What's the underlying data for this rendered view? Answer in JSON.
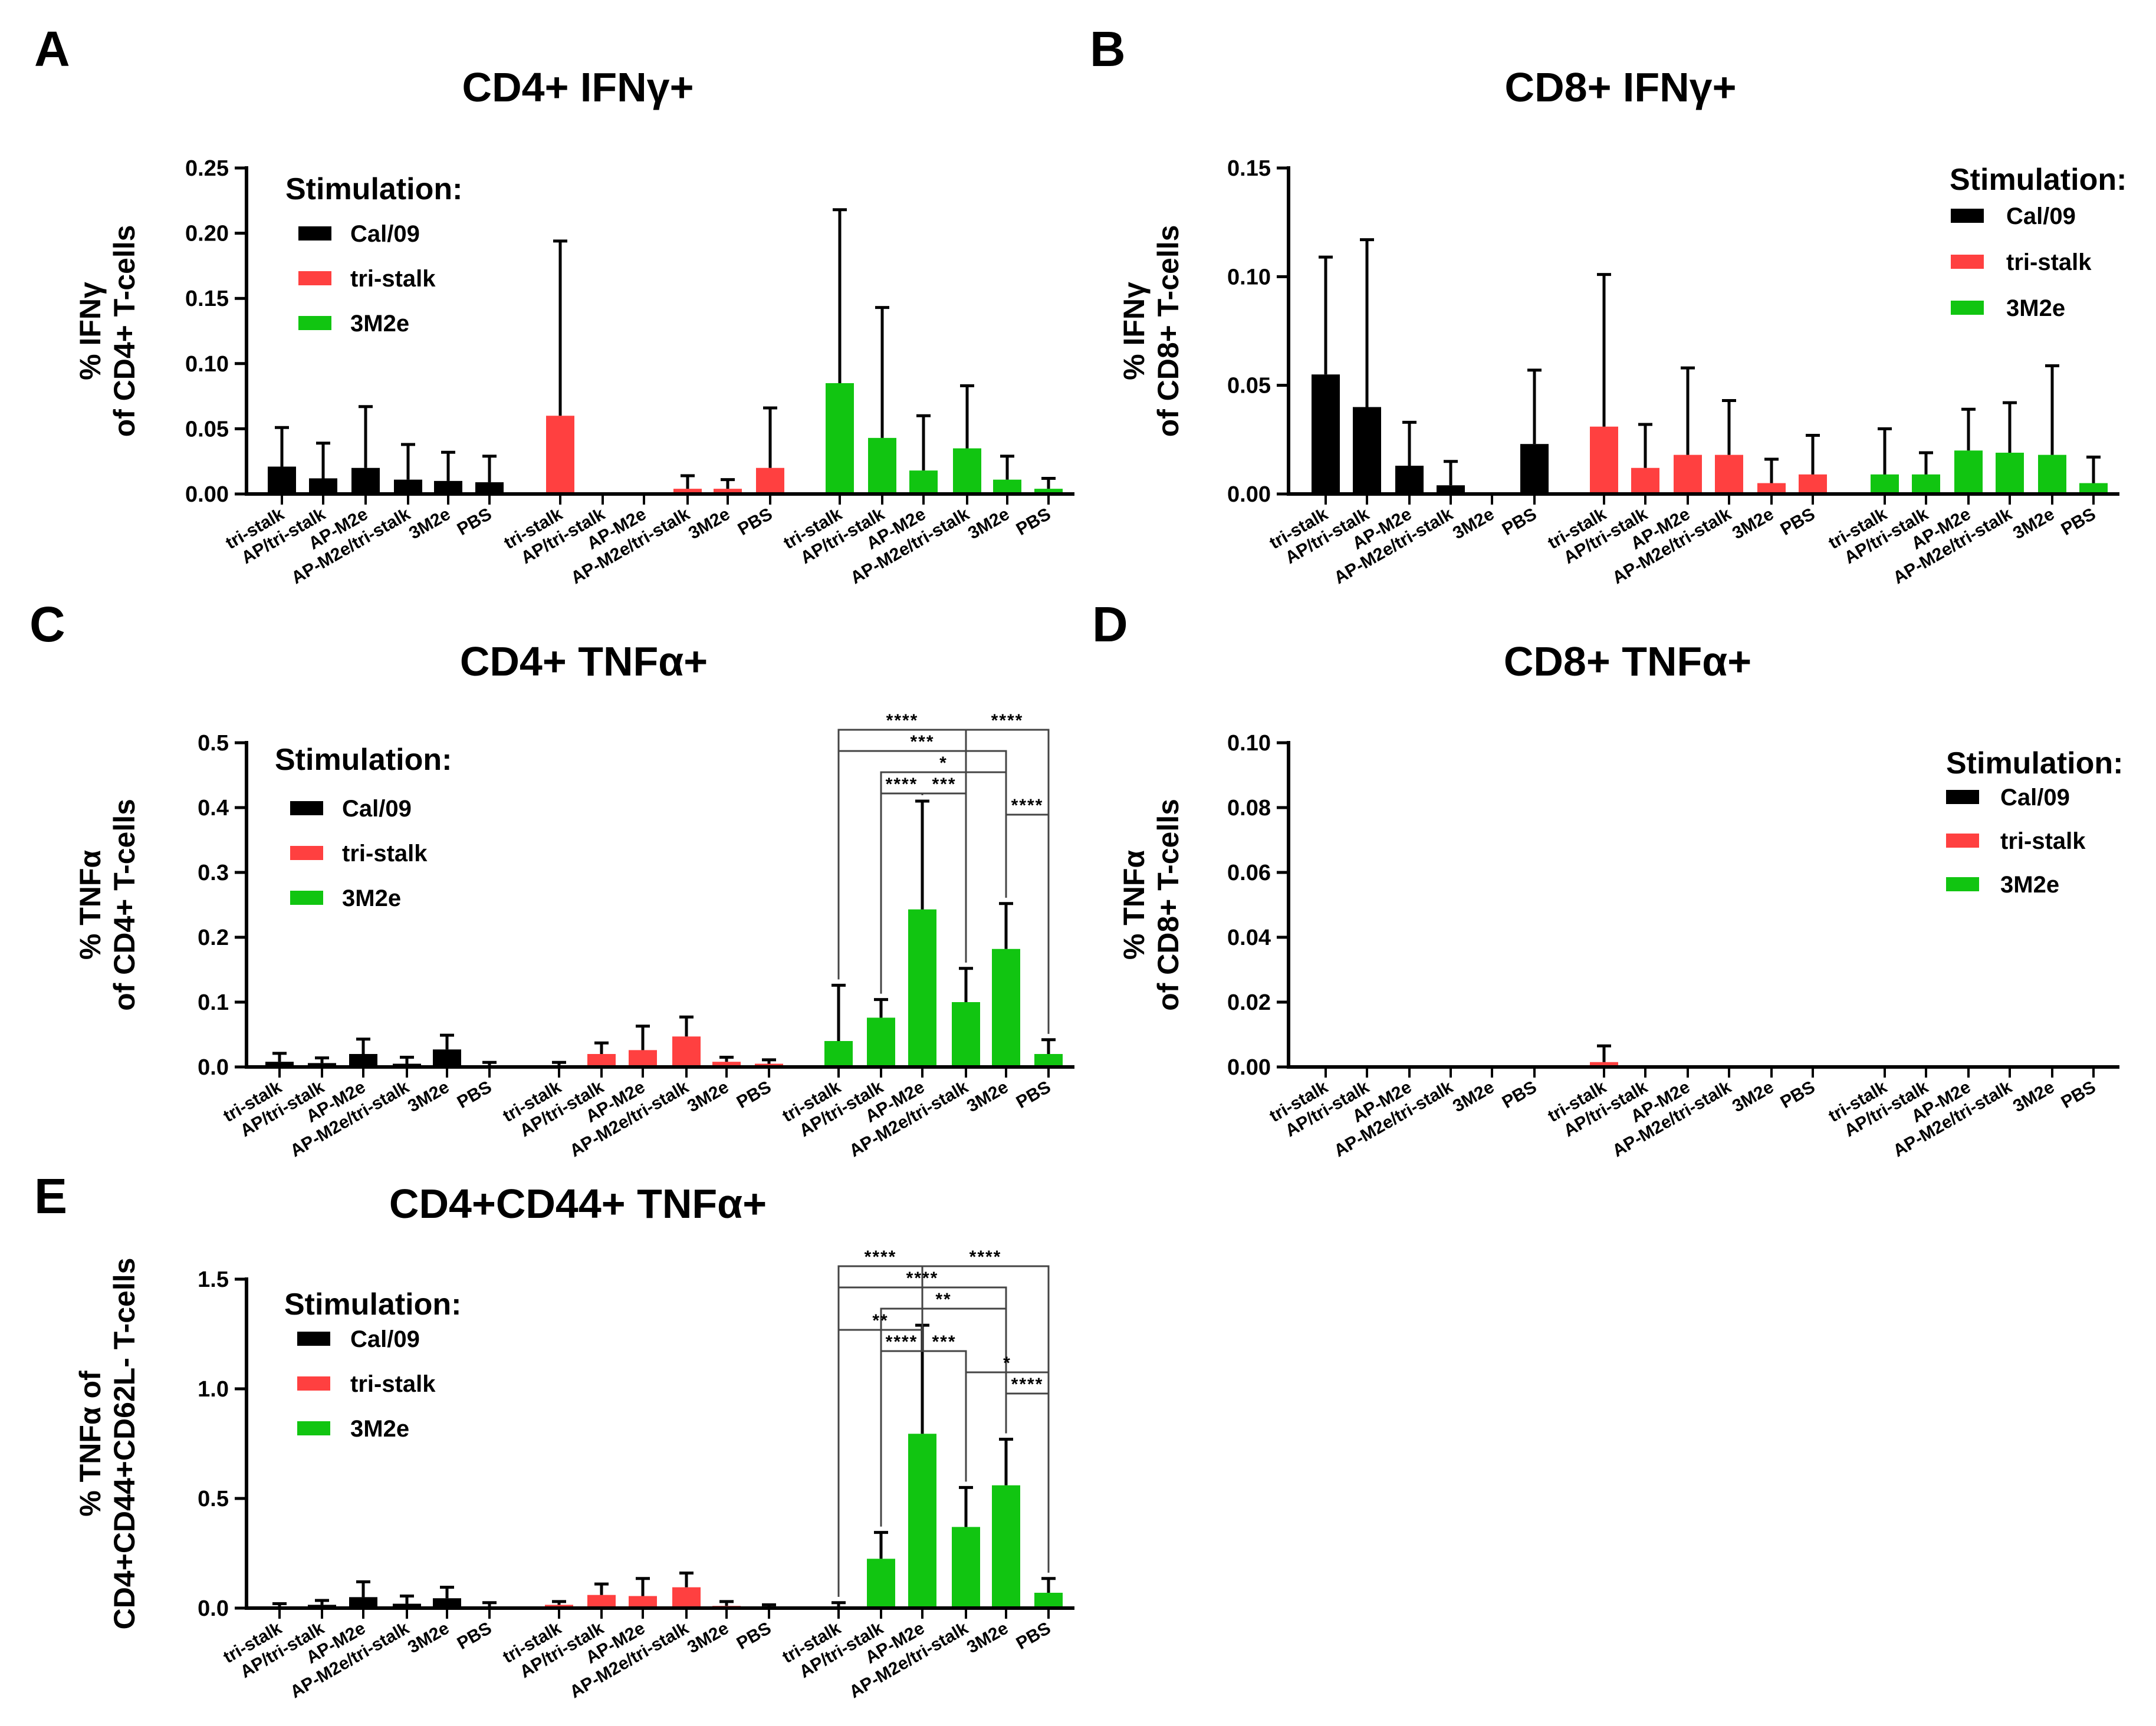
{
  "chart_data": [
    {
      "panel_id": "A",
      "type": "bar",
      "title": "CD4+ IFNγ+",
      "ylabel_lines": [
        "% IFNγ",
        "of CD4+ T-cells"
      ],
      "ylim": [
        0,
        0.25
      ],
      "yticks": [
        0.0,
        0.05,
        0.1,
        0.15,
        0.2,
        0.25
      ],
      "ytick_labels": [
        "0.00",
        "0.05",
        "0.10",
        "0.15",
        "0.20",
        "0.25"
      ],
      "categories": [
        "tri-stalk",
        "AP/tri-stalk",
        "AP-M2e",
        "AP-M2e/tri-stalk",
        "3M2e",
        "PBS"
      ],
      "legend": {
        "title": "Stimulation:",
        "position": "top-left",
        "entries": [
          "Cal/09",
          "tri-stalk",
          "3M2e"
        ]
      },
      "series": [
        {
          "name": "Cal/09",
          "color": "#000000",
          "values": [
            0.021,
            0.012,
            0.02,
            0.011,
            0.01,
            0.009
          ],
          "errors": [
            0.03,
            0.027,
            0.047,
            0.027,
            0.022,
            0.02
          ]
        },
        {
          "name": "tri-stalk",
          "color": "#ff4040",
          "values": [
            0.06,
            0,
            0,
            0.004,
            0.004,
            0.02
          ],
          "errors": [
            0.134,
            0,
            0,
            0.01,
            0.007,
            0.046
          ]
        },
        {
          "name": "3M2e",
          "color": "#11c511",
          "values": [
            0.085,
            0.043,
            0.018,
            0.035,
            0.011,
            0.004
          ],
          "errors": [
            0.133,
            0.1,
            0.042,
            0.048,
            0.018,
            0.008
          ]
        }
      ],
      "significance": []
    },
    {
      "panel_id": "B",
      "type": "bar",
      "title": "CD8+ IFNγ+",
      "ylabel_lines": [
        "% IFNγ",
        "of CD8+ T-cells"
      ],
      "ylim": [
        0,
        0.15
      ],
      "yticks": [
        0.0,
        0.05,
        0.1,
        0.15
      ],
      "ytick_labels": [
        "0.00",
        "0.05",
        "0.10",
        "0.15"
      ],
      "categories": [
        "tri-stalk",
        "AP/tri-stalk",
        "AP-M2e",
        "AP-M2e/tri-stalk",
        "3M2e",
        "PBS"
      ],
      "legend": {
        "title": "Stimulation:",
        "position": "top-right",
        "entries": [
          "Cal/09",
          "tri-stalk",
          "3M2e"
        ]
      },
      "series": [
        {
          "name": "Cal/09",
          "color": "#000000",
          "values": [
            0.055,
            0.04,
            0.013,
            0.004,
            0,
            0.023
          ],
          "errors": [
            0.054,
            0.077,
            0.02,
            0.011,
            0,
            0.034
          ]
        },
        {
          "name": "tri-stalk",
          "color": "#ff4040",
          "values": [
            0.031,
            0.012,
            0.018,
            0.018,
            0.005,
            0.009
          ],
          "errors": [
            0.07,
            0.02,
            0.04,
            0.025,
            0.011,
            0.018
          ]
        },
        {
          "name": "3M2e",
          "color": "#11c511",
          "values": [
            0.009,
            0.009,
            0.02,
            0.019,
            0.018,
            0.005
          ],
          "errors": [
            0.021,
            0.01,
            0.019,
            0.023,
            0.041,
            0.012
          ]
        }
      ],
      "significance": []
    },
    {
      "panel_id": "C",
      "type": "bar",
      "title": "CD4+ TNFα+",
      "ylabel_lines": [
        "% TNFα",
        "of CD4+ T-cells"
      ],
      "ylim": [
        0,
        0.5
      ],
      "yticks": [
        0.0,
        0.1,
        0.2,
        0.3,
        0.4,
        0.5
      ],
      "ytick_labels": [
        "0.0",
        "0.1",
        "0.2",
        "0.3",
        "0.4",
        "0.5"
      ],
      "categories": [
        "tri-stalk",
        "AP/tri-stalk",
        "AP-M2e",
        "AP-M2e/tri-stalk",
        "3M2e",
        "PBS"
      ],
      "legend": {
        "title": "Stimulation:",
        "position": "top-left",
        "entries": [
          "Cal/09",
          "tri-stalk",
          "3M2e"
        ]
      },
      "series": [
        {
          "name": "Cal/09",
          "color": "#000000",
          "values": [
            0.008,
            0.006,
            0.02,
            0.005,
            0.027,
            0.002
          ],
          "errors": [
            0.013,
            0.008,
            0.023,
            0.01,
            0.022,
            0.005
          ]
        },
        {
          "name": "tri-stalk",
          "color": "#ff4040",
          "values": [
            0.002,
            0.02,
            0.026,
            0.047,
            0.008,
            0.005
          ],
          "errors": [
            0.005,
            0.017,
            0.037,
            0.03,
            0.007,
            0.006
          ]
        },
        {
          "name": "3M2e",
          "color": "#11c511",
          "values": [
            0.04,
            0.076,
            0.243,
            0.1,
            0.182,
            0.02
          ],
          "errors": [
            0.086,
            0.028,
            0.167,
            0.052,
            0.07,
            0.022
          ]
        }
      ],
      "significance": [
        {
          "label": "****",
          "from": 0,
          "to": 3,
          "level": 1,
          "junction": true
        },
        {
          "label": "****",
          "from": 3,
          "to": 5,
          "level": 1,
          "junction": true
        },
        {
          "label": "***",
          "from": 0,
          "to": 4,
          "level": 2
        },
        {
          "label": "*",
          "from": 1,
          "to": 4,
          "level": 3
        },
        {
          "label": "****",
          "from": 1,
          "to": 2,
          "level": 4
        },
        {
          "label": "***",
          "from": 2,
          "to": 3,
          "level": 4
        },
        {
          "label": "****",
          "from": 4,
          "to": 5,
          "level": 5
        }
      ]
    },
    {
      "panel_id": "D",
      "type": "bar",
      "title": "CD8+ TNFα+",
      "ylabel_lines": [
        "% TNFα",
        "of CD8+ T-cells"
      ],
      "ylim": [
        0,
        0.1
      ],
      "yticks": [
        0.0,
        0.02,
        0.04,
        0.06,
        0.08,
        0.1
      ],
      "ytick_labels": [
        "0.00",
        "0.02",
        "0.04",
        "0.06",
        "0.08",
        "0.10"
      ],
      "categories": [
        "tri-stalk",
        "AP/tri-stalk",
        "AP-M2e",
        "AP-M2e/tri-stalk",
        "3M2e",
        "PBS"
      ],
      "legend": {
        "title": "Stimulation:",
        "position": "top-right",
        "entries": [
          "Cal/09",
          "tri-stalk",
          "3M2e"
        ]
      },
      "series": [
        {
          "name": "Cal/09",
          "color": "#000000",
          "values": [
            0,
            0,
            0,
            0,
            0,
            0
          ],
          "errors": [
            0,
            0,
            0,
            0,
            0,
            0
          ]
        },
        {
          "name": "tri-stalk",
          "color": "#ff4040",
          "values": [
            0.0015,
            0,
            0,
            0,
            0,
            0
          ],
          "errors": [
            0.005,
            0,
            0,
            0,
            0,
            0
          ]
        },
        {
          "name": "3M2e",
          "color": "#11c511",
          "values": [
            0,
            0,
            0,
            0,
            0,
            0
          ],
          "errors": [
            0,
            0,
            0,
            0,
            0,
            0
          ]
        }
      ],
      "significance": []
    },
    {
      "panel_id": "E",
      "type": "bar",
      "title": "CD4+CD44+ TNFα+",
      "ylabel_lines": [
        "% TNFα of",
        "CD4+CD44+CD62L- T-cells"
      ],
      "ylim": [
        0,
        1.5
      ],
      "yticks": [
        0.0,
        0.5,
        1.0,
        1.5
      ],
      "ytick_labels": [
        "0.0",
        "0.5",
        "1.0",
        "1.5"
      ],
      "categories": [
        "tri-stalk",
        "AP/tri-stalk",
        "AP-M2e",
        "AP-M2e/tri-stalk",
        "3M2e",
        "PBS"
      ],
      "legend": {
        "title": "Stimulation:",
        "position": "top-left",
        "entries": [
          "Cal/09",
          "tri-stalk",
          "3M2e"
        ]
      },
      "series": [
        {
          "name": "Cal/09",
          "color": "#000000",
          "values": [
            0.005,
            0.015,
            0.05,
            0.02,
            0.045,
            0.005
          ],
          "errors": [
            0.015,
            0.02,
            0.07,
            0.035,
            0.05,
            0.02
          ]
        },
        {
          "name": "tri-stalk",
          "color": "#ff4040",
          "values": [
            0.015,
            0.06,
            0.055,
            0.095,
            0.01,
            0.005
          ],
          "errors": [
            0.015,
            0.05,
            0.08,
            0.065,
            0.02,
            0.01
          ]
        },
        {
          "name": "3M2e",
          "color": "#11c511",
          "values": [
            0.005,
            0.225,
            0.795,
            0.37,
            0.56,
            0.07
          ],
          "errors": [
            0.02,
            0.12,
            0.495,
            0.18,
            0.21,
            0.065
          ]
        }
      ],
      "significance": [
        {
          "label": "****",
          "from": 0,
          "to": 2,
          "level": 1,
          "junction": true
        },
        {
          "label": "****",
          "from": 2,
          "to": 5,
          "level": 1,
          "junction": true
        },
        {
          "label": "****",
          "from": 0,
          "to": 4,
          "level": 2
        },
        {
          "label": "**",
          "from": 1,
          "to": 4,
          "level": 3
        },
        {
          "label": "**",
          "from": 0,
          "to": 2,
          "level": 4
        },
        {
          "label": "****",
          "from": 1,
          "to": 2,
          "level": 5
        },
        {
          "label": "***",
          "from": 2,
          "to": 3,
          "level": 5
        },
        {
          "label": "*",
          "from": 3,
          "to": 5,
          "level": 6
        },
        {
          "label": "****",
          "from": 4,
          "to": 5,
          "level": 7
        }
      ]
    }
  ]
}
